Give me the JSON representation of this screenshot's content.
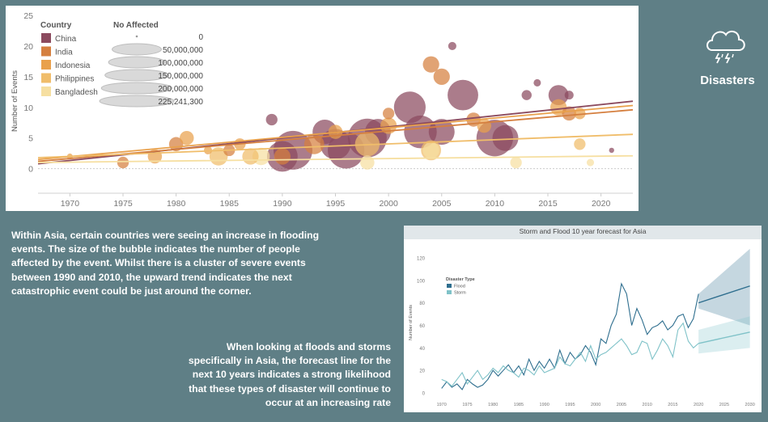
{
  "page": {
    "title": "Disasters",
    "icon": "storm-cloud-icon",
    "story1": "Within Asia, certain countries were seeing an increase in flooding events. The size of the bubble indicates the number of people affected by the event. Whilst there is a cluster of severe events between 1990 and 2010, the upward trend indicates the next catastrophic event could be just around the corner.",
    "story2": "When looking at floods and storms specifically in Asia, the forecast line for the next 10 years indicates a strong likelihood that these types of disaster will continue to occur at an increasing rate"
  },
  "colors": {
    "background": "#5f7f86",
    "China": "#8b4a5e",
    "India": "#d57f3f",
    "Indonesia": "#e9a14c",
    "Philippines": "#f0bd6a",
    "Bangladesh": "#f6dfa1",
    "Flood": "#2e6e8e",
    "Storm": "#7fc2c8"
  },
  "chart_data": [
    {
      "type": "scatter",
      "title": "",
      "xlabel": "",
      "ylabel": "Number of Events",
      "xlim": [
        1967,
        2023
      ],
      "ylim": [
        -4,
        25
      ],
      "x_ticks": [
        1970,
        1975,
        1980,
        1985,
        1990,
        1995,
        2000,
        2005,
        2010,
        2015,
        2020
      ],
      "y_ticks": [
        0,
        5,
        10,
        15,
        20,
        25
      ],
      "legend_country_title": "Country",
      "legend_size_title": "No Affected",
      "legend_position": "top-left",
      "countries": [
        "China",
        "India",
        "Indonesia",
        "Philippines",
        "Bangladesh"
      ],
      "size_legend": [
        {
          "label": "0",
          "value": 0
        },
        {
          "label": "50,000,000",
          "value": 50000000
        },
        {
          "label": "100,000,000",
          "value": 100000000
        },
        {
          "label": "150,000,000",
          "value": 150000000
        },
        {
          "label": "200,000,000",
          "value": 200000000
        },
        {
          "label": "225,241,300",
          "value": 225241300
        }
      ],
      "trend_lines": [
        {
          "country": "China",
          "x": [
            1967,
            2023
          ],
          "y": [
            0.8,
            11
          ]
        },
        {
          "country": "India",
          "x": [
            1967,
            2023
          ],
          "y": [
            1.2,
            9.6
          ]
        },
        {
          "country": "Indonesia",
          "x": [
            1967,
            2023
          ],
          "y": [
            1.5,
            10.3
          ]
        },
        {
          "country": "Philippines",
          "x": [
            1967,
            2023
          ],
          "y": [
            1.8,
            5.6
          ]
        },
        {
          "country": "Bangladesh",
          "x": [
            1967,
            2023
          ],
          "y": [
            1.0,
            2.1
          ]
        }
      ],
      "points": [
        {
          "country": "China",
          "x": 1989,
          "y": 8,
          "affected": 20000000
        },
        {
          "country": "China",
          "x": 1990,
          "y": 2,
          "affected": 140000000
        },
        {
          "country": "China",
          "x": 1991,
          "y": 3,
          "affected": 225000000
        },
        {
          "country": "China",
          "x": 1994,
          "y": 6,
          "affected": 90000000
        },
        {
          "country": "China",
          "x": 1995,
          "y": 4,
          "affected": 140000000
        },
        {
          "country": "China",
          "x": 1996,
          "y": 3,
          "affected": 200000000
        },
        {
          "country": "China",
          "x": 1998,
          "y": 5,
          "affected": 225000000
        },
        {
          "country": "China",
          "x": 1999,
          "y": 6,
          "affected": 100000000
        },
        {
          "country": "China",
          "x": 2002,
          "y": 10,
          "affected": 150000000
        },
        {
          "country": "China",
          "x": 2003,
          "y": 6,
          "affected": 160000000
        },
        {
          "country": "China",
          "x": 2005,
          "y": 6,
          "affected": 100000000
        },
        {
          "country": "China",
          "x": 2006,
          "y": 20,
          "affected": 10000000
        },
        {
          "country": "China",
          "x": 2007,
          "y": 12,
          "affected": 140000000
        },
        {
          "country": "China",
          "x": 2010,
          "y": 5,
          "affected": 200000000
        },
        {
          "country": "China",
          "x": 2011,
          "y": 5,
          "affected": 100000000
        },
        {
          "country": "China",
          "x": 2013,
          "y": 12,
          "affected": 15000000
        },
        {
          "country": "China",
          "x": 2014,
          "y": 14,
          "affected": 8000000
        },
        {
          "country": "China",
          "x": 2016,
          "y": 12,
          "affected": 60000000
        },
        {
          "country": "China",
          "x": 2017,
          "y": 12,
          "affected": 12000000
        },
        {
          "country": "China",
          "x": 2021,
          "y": 3,
          "affected": 4000000
        },
        {
          "country": "India",
          "x": 1975,
          "y": 1,
          "affected": 20000000
        },
        {
          "country": "India",
          "x": 1980,
          "y": 4,
          "affected": 30000000
        },
        {
          "country": "India",
          "x": 1985,
          "y": 3,
          "affected": 20000000
        },
        {
          "country": "India",
          "x": 1990,
          "y": 2,
          "affected": 40000000
        },
        {
          "country": "India",
          "x": 1993,
          "y": 4,
          "affected": 60000000
        },
        {
          "country": "India",
          "x": 2000,
          "y": 9,
          "affected": 20000000
        },
        {
          "country": "India",
          "x": 2004,
          "y": 17,
          "affected": 40000000
        },
        {
          "country": "India",
          "x": 2005,
          "y": 15,
          "affected": 40000000
        },
        {
          "country": "India",
          "x": 2008,
          "y": 8,
          "affected": 30000000
        },
        {
          "country": "India",
          "x": 2017,
          "y": 9,
          "affected": 30000000
        },
        {
          "country": "Indonesia",
          "x": 1970,
          "y": 2,
          "affected": 5000000
        },
        {
          "country": "Indonesia",
          "x": 1978,
          "y": 2,
          "affected": 30000000
        },
        {
          "country": "Indonesia",
          "x": 1981,
          "y": 5,
          "affected": 30000000
        },
        {
          "country": "Indonesia",
          "x": 1983,
          "y": 3,
          "affected": 10000000
        },
        {
          "country": "Indonesia",
          "x": 1986,
          "y": 4,
          "affected": 20000000
        },
        {
          "country": "Indonesia",
          "x": 1995,
          "y": 6,
          "affected": 30000000
        },
        {
          "country": "Indonesia",
          "x": 2000,
          "y": 7,
          "affected": 40000000
        },
        {
          "country": "Indonesia",
          "x": 2009,
          "y": 7,
          "affected": 30000000
        },
        {
          "country": "Indonesia",
          "x": 2016,
          "y": 10,
          "affected": 40000000
        },
        {
          "country": "Indonesia",
          "x": 2018,
          "y": 9,
          "affected": 20000000
        },
        {
          "country": "Philippines",
          "x": 1984,
          "y": 2,
          "affected": 50000000
        },
        {
          "country": "Philippines",
          "x": 1987,
          "y": 2,
          "affected": 40000000
        },
        {
          "country": "Philippines",
          "x": 1998,
          "y": 4,
          "affected": 90000000
        },
        {
          "country": "Philippines",
          "x": 2004,
          "y": 3,
          "affected": 60000000
        },
        {
          "country": "Philippines",
          "x": 2018,
          "y": 4,
          "affected": 20000000
        },
        {
          "country": "Bangladesh",
          "x": 1988,
          "y": 2,
          "affected": 45000000
        },
        {
          "country": "Bangladesh",
          "x": 1998,
          "y": 1,
          "affected": 30000000
        },
        {
          "country": "Bangladesh",
          "x": 2004,
          "y": 3,
          "affected": 40000000
        },
        {
          "country": "Bangladesh",
          "x": 2012,
          "y": 1,
          "affected": 20000000
        },
        {
          "country": "Bangladesh",
          "x": 2019,
          "y": 1,
          "affected": 8000000
        }
      ]
    },
    {
      "type": "line",
      "title": "Storm and Flood 10 year forecast for Asia",
      "xlabel": "",
      "ylabel": "Number of Events",
      "legend_title": "Disaster Type",
      "legend_position": "top-left",
      "xlim": [
        1968,
        2031
      ],
      "ylim": [
        -5,
        130
      ],
      "x_ticks": [
        1970,
        1975,
        1980,
        1985,
        1990,
        1995,
        2000,
        2005,
        2010,
        2015,
        2020,
        2025,
        2030
      ],
      "y_ticks": [
        0,
        20,
        40,
        60,
        80,
        100,
        120
      ],
      "series": [
        {
          "name": "Flood",
          "x": [
            1970,
            1971,
            1972,
            1973,
            1974,
            1975,
            1976,
            1977,
            1978,
            1979,
            1980,
            1981,
            1982,
            1983,
            1984,
            1985,
            1986,
            1987,
            1988,
            1989,
            1990,
            1991,
            1992,
            1993,
            1994,
            1995,
            1996,
            1997,
            1998,
            1999,
            2000,
            2001,
            2002,
            2003,
            2004,
            2005,
            2006,
            2007,
            2008,
            2009,
            2010,
            2011,
            2012,
            2013,
            2014,
            2015,
            2016,
            2017,
            2018,
            2019,
            2020
          ],
          "values": [
            4,
            10,
            5,
            8,
            3,
            12,
            8,
            5,
            7,
            12,
            20,
            15,
            20,
            25,
            18,
            24,
            16,
            30,
            20,
            28,
            22,
            30,
            22,
            38,
            26,
            36,
            30,
            34,
            42,
            36,
            25,
            48,
            44,
            60,
            70,
            97,
            88,
            60,
            75,
            65,
            52,
            58,
            60,
            64,
            56,
            60,
            68,
            70,
            58,
            66,
            88
          ]
        },
        {
          "name": "Storm",
          "x": [
            1970,
            1971,
            1972,
            1973,
            1974,
            1975,
            1976,
            1977,
            1978,
            1979,
            1980,
            1981,
            1982,
            1983,
            1984,
            1985,
            1986,
            1987,
            1988,
            1989,
            1990,
            1991,
            1992,
            1993,
            1994,
            1995,
            1996,
            1997,
            1998,
            1999,
            2000,
            2001,
            2002,
            2003,
            2004,
            2005,
            2006,
            2007,
            2008,
            2009,
            2010,
            2011,
            2012,
            2013,
            2014,
            2015,
            2016,
            2017,
            2018,
            2019,
            2020
          ],
          "values": [
            12,
            10,
            6,
            12,
            18,
            8,
            14,
            20,
            12,
            16,
            22,
            18,
            24,
            20,
            18,
            14,
            22,
            20,
            16,
            24,
            18,
            20,
            22,
            32,
            26,
            24,
            30,
            36,
            28,
            42,
            30,
            34,
            36,
            40,
            44,
            48,
            42,
            34,
            36,
            46,
            44,
            30,
            38,
            48,
            42,
            32,
            56,
            62,
            46,
            40,
            44
          ]
        }
      ],
      "forecast": [
        {
          "name": "Flood",
          "x": [
            2020,
            2030
          ],
          "values": [
            80,
            95
          ],
          "band_lower": [
            75,
            60
          ],
          "band_upper": [
            88,
            128
          ]
        },
        {
          "name": "Storm",
          "x": [
            2020,
            2030
          ],
          "values": [
            44,
            54
          ],
          "band_lower": [
            35,
            40
          ],
          "band_upper": [
            56,
            68
          ]
        }
      ]
    }
  ]
}
